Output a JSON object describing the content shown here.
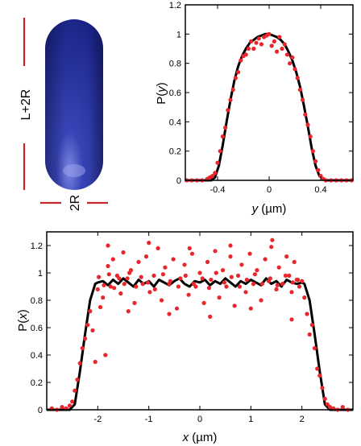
{
  "colors": {
    "theory_line": "#000000",
    "data_points": "#e8262b",
    "rod_body": "#2b37a8",
    "dimension_marks": "#c8262b"
  },
  "schematic": {
    "length_label": "L+2R",
    "diameter_label": "2R"
  },
  "chart_data": [
    {
      "type": "scatter",
      "panel": "top-right",
      "xlabel_var": "y",
      "xlabel_unit": " (µm)",
      "ylabel_prefix": "P(",
      "ylabel_var": "y",
      "ylabel_suffix": ")",
      "xlim": [
        -0.65,
        0.65
      ],
      "ylim": [
        0,
        1.2
      ],
      "xticks": [
        -0.4,
        0,
        0.4
      ],
      "xtick_labels": [
        "-0.4",
        "0",
        "0.4"
      ],
      "yticks": [
        0,
        0.2,
        0.4,
        0.6,
        0.8,
        1,
        1.2
      ],
      "ytick_labels": [
        "0",
        "0.2",
        "0.4",
        "0.6",
        "0.8",
        "1",
        "1.2"
      ],
      "grid": false,
      "line": {
        "x": [
          -0.65,
          -0.45,
          -0.42,
          -0.39,
          -0.36,
          -0.33,
          -0.3,
          -0.27,
          -0.24,
          -0.21,
          -0.18,
          -0.15,
          -0.12,
          -0.09,
          -0.06,
          -0.03,
          0,
          0.03,
          0.06,
          0.09,
          0.12,
          0.15,
          0.18,
          0.21,
          0.24,
          0.27,
          0.3,
          0.33,
          0.36,
          0.39,
          0.42,
          0.45,
          0.65
        ],
        "y": [
          0,
          0,
          0.02,
          0.1,
          0.24,
          0.4,
          0.55,
          0.68,
          0.78,
          0.85,
          0.9,
          0.94,
          0.96,
          0.98,
          0.99,
          1.0,
          1.0,
          0.99,
          0.98,
          0.96,
          0.93,
          0.88,
          0.82,
          0.74,
          0.64,
          0.51,
          0.37,
          0.22,
          0.1,
          0.03,
          0.01,
          0,
          0
        ]
      },
      "points": {
        "x": [
          -0.64,
          -0.6,
          -0.56,
          -0.52,
          -0.48,
          -0.46,
          -0.44,
          -0.42,
          -0.4,
          -0.38,
          -0.36,
          -0.34,
          -0.32,
          -0.3,
          -0.28,
          -0.26,
          -0.24,
          -0.22,
          -0.2,
          -0.18,
          -0.16,
          -0.14,
          -0.12,
          -0.1,
          -0.08,
          -0.06,
          -0.04,
          -0.02,
          0,
          0.02,
          0.04,
          0.06,
          0.08,
          0.1,
          0.12,
          0.14,
          0.16,
          0.18,
          0.2,
          0.22,
          0.24,
          0.26,
          0.28,
          0.3,
          0.32,
          0.34,
          0.36,
          0.38,
          0.4,
          0.42,
          0.44,
          0.48,
          0.52,
          0.56,
          0.6,
          0.64
        ],
        "y": [
          0.0,
          0.0,
          0.0,
          0.0,
          0.01,
          0.02,
          0.03,
          0.05,
          0.12,
          0.2,
          0.3,
          0.36,
          0.48,
          0.55,
          0.62,
          0.7,
          0.74,
          0.82,
          0.85,
          0.86,
          0.9,
          0.95,
          0.9,
          0.94,
          0.97,
          0.93,
          0.98,
          0.99,
          1.0,
          0.92,
          0.95,
          0.88,
          0.98,
          0.9,
          0.93,
          0.86,
          0.8,
          0.84,
          0.76,
          0.7,
          0.62,
          0.55,
          0.45,
          0.38,
          0.3,
          0.2,
          0.13,
          0.07,
          0.03,
          0.01,
          0.0,
          0.0,
          0.0,
          0.0,
          0.0,
          0.0
        ]
      }
    },
    {
      "type": "scatter",
      "panel": "bottom",
      "xlabel_var": "x",
      "xlabel_unit": " (µm)",
      "ylabel_prefix": "P(",
      "ylabel_var": "x",
      "ylabel_suffix": ")",
      "xlim": [
        -3,
        3
      ],
      "ylim": [
        0,
        1.3
      ],
      "xticks": [
        -2,
        -1,
        0,
        1,
        2
      ],
      "xtick_labels": [
        "-2",
        "-1",
        "0",
        "1",
        "2"
      ],
      "yticks": [
        0,
        0.2,
        0.4,
        0.6,
        0.8,
        1,
        1.2
      ],
      "ytick_labels": [
        "0",
        "0.2",
        "0.4",
        "0.6",
        "0.8",
        "1",
        "1.2"
      ],
      "grid": false,
      "line": {
        "x": [
          -3,
          -2.55,
          -2.45,
          -2.35,
          -2.25,
          -2.15,
          -2.05,
          -2.0,
          -1.9,
          -1.8,
          -1.7,
          -1.6,
          -1.5,
          -1.4,
          -1.3,
          -1.2,
          -1.1,
          -1.0,
          -0.9,
          -0.8,
          -0.7,
          -0.6,
          -0.5,
          -0.4,
          -0.3,
          -0.2,
          -0.1,
          0,
          0.1,
          0.2,
          0.3,
          0.4,
          0.5,
          0.6,
          0.7,
          0.8,
          0.9,
          1.0,
          1.1,
          1.2,
          1.3,
          1.4,
          1.5,
          1.6,
          1.7,
          1.8,
          1.9,
          2.0,
          2.05,
          2.15,
          2.25,
          2.35,
          2.45,
          2.55,
          3
        ],
        "y": [
          0,
          0,
          0.04,
          0.28,
          0.55,
          0.8,
          0.92,
          0.93,
          0.94,
          0.91,
          0.95,
          0.92,
          0.96,
          0.93,
          0.9,
          0.95,
          0.92,
          0.94,
          0.9,
          0.95,
          0.93,
          0.91,
          0.94,
          0.96,
          0.92,
          0.9,
          0.94,
          0.93,
          0.95,
          0.91,
          0.94,
          0.92,
          0.96,
          0.93,
          0.9,
          0.94,
          0.92,
          0.95,
          0.93,
          0.91,
          0.96,
          0.92,
          0.94,
          0.9,
          0.95,
          0.93,
          0.92,
          0.93,
          0.92,
          0.8,
          0.55,
          0.28,
          0.04,
          0,
          0
        ]
      },
      "points": {
        "x": [
          -2.9,
          -2.8,
          -2.7,
          -2.62,
          -2.55,
          -2.5,
          -2.45,
          -2.4,
          -2.35,
          -2.3,
          -2.25,
          -2.2,
          -2.15,
          -2.1,
          -2.05,
          -2.0,
          -1.95,
          -1.9,
          -1.85,
          -1.8,
          -1.75,
          -1.7,
          -1.62,
          -1.55,
          -1.5,
          -1.42,
          -1.35,
          -1.28,
          -1.2,
          -1.12,
          -1.05,
          -0.98,
          -0.9,
          -0.82,
          -0.75,
          -0.68,
          -0.6,
          -0.52,
          -0.45,
          -0.38,
          -0.3,
          -0.22,
          -0.15,
          -0.08,
          0.0,
          0.08,
          0.15,
          0.22,
          0.3,
          0.38,
          0.45,
          0.52,
          0.6,
          0.68,
          0.75,
          0.82,
          0.9,
          0.98,
          1.05,
          1.12,
          1.2,
          1.28,
          1.35,
          1.42,
          1.5,
          1.55,
          1.62,
          1.7,
          1.75,
          1.8,
          1.85,
          1.9,
          1.95,
          2.0,
          2.05,
          2.1,
          2.15,
          2.2,
          2.25,
          2.3,
          2.35,
          2.4,
          2.45,
          2.5,
          2.55,
          2.62,
          2.7,
          2.8,
          2.9,
          -1.98,
          -1.88,
          -1.78,
          -1.68,
          -1.58,
          -1.48,
          -1.38,
          -1.25,
          -1.15,
          -1.02,
          -0.88,
          -0.72,
          -0.58,
          -0.42,
          -0.28,
          -0.12,
          0.05,
          0.18,
          0.32,
          0.48,
          0.62,
          0.78,
          0.92,
          1.08,
          1.22,
          1.38,
          1.52,
          1.68,
          1.82,
          1.92,
          -1.8,
          -1.4,
          -1.0,
          -0.6,
          -0.2,
          0.2,
          0.6,
          1.0,
          1.4,
          1.8
        ],
        "y": [
          0.01,
          0.0,
          0.02,
          0.01,
          0.03,
          0.06,
          0.14,
          0.22,
          0.34,
          0.45,
          0.52,
          0.62,
          0.72,
          0.58,
          0.35,
          0.88,
          0.75,
          0.82,
          0.4,
          1.05,
          0.9,
          1.1,
          0.98,
          0.85,
          1.15,
          0.96,
          1.02,
          0.78,
          1.08,
          0.92,
          1.12,
          0.86,
          0.98,
          1.18,
          0.8,
          1.04,
          0.92,
          1.1,
          0.74,
          0.96,
          1.06,
          0.84,
          1.14,
          0.9,
          1.0,
          0.78,
          1.08,
          0.95,
          1.16,
          0.82,
          1.02,
          0.9,
          1.12,
          0.76,
          0.98,
          1.06,
          0.86,
          1.14,
          0.92,
          1.02,
          0.8,
          1.1,
          0.94,
          1.24,
          0.88,
          1.04,
          0.92,
          1.12,
          0.98,
          0.86,
          1.08,
          0.95,
          0.9,
          0.94,
          0.82,
          0.7,
          0.55,
          0.62,
          0.45,
          0.3,
          0.25,
          0.16,
          0.08,
          0.04,
          0.02,
          0.01,
          0.0,
          0.02,
          0.0,
          0.97,
          0.91,
          0.99,
          0.89,
          0.96,
          0.92,
          1.0,
          0.9,
          0.97,
          0.93,
          0.88,
          0.99,
          0.94,
          0.9,
          0.98,
          0.92,
          0.96,
          0.89,
          1.0,
          0.93,
          0.97,
          0.9,
          0.95,
          0.99,
          0.92,
          0.96,
          0.91,
          0.98,
          0.93,
          0.95,
          1.2,
          0.72,
          1.22,
          0.7,
          1.18,
          0.68,
          1.2,
          0.74,
          1.19,
          0.66
        ]
      }
    }
  ]
}
